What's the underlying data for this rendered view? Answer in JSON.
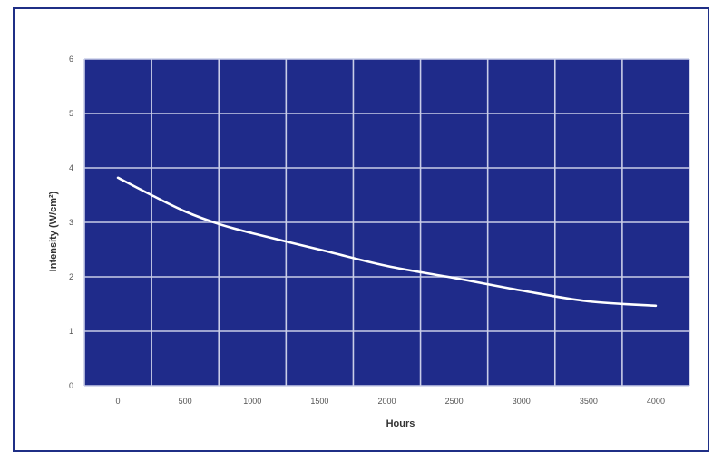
{
  "chart_data": {
    "type": "line",
    "title": "",
    "xlabel": "Hours",
    "ylabel": "Intensity (W/cm²)",
    "xlim": [
      -250,
      4250
    ],
    "ylim": [
      0,
      6
    ],
    "xticks": [
      0,
      500,
      1000,
      1500,
      2000,
      2500,
      3000,
      3500,
      4000
    ],
    "xtick_labels": [
      "0",
      "500",
      "1000",
      "1500",
      "2000",
      "2500",
      "3000",
      "3500",
      "4000"
    ],
    "yticks": [
      0,
      1,
      2,
      3,
      4,
      5,
      6
    ],
    "ytick_labels": [
      "0",
      "1",
      "2",
      "3",
      "4",
      "5",
      "6"
    ],
    "grid": true,
    "colors": {
      "plot_bg": "#1f2b8a",
      "grid": "#c9cde8",
      "line": "#ffffff",
      "frame": "#1f2f86"
    },
    "series": [
      {
        "x": [
          0,
          250,
          500,
          750,
          1000,
          1500,
          2000,
          2500,
          3000,
          3500,
          4000
        ],
        "y": [
          3.82,
          3.5,
          3.2,
          2.97,
          2.8,
          2.5,
          2.2,
          1.98,
          1.75,
          1.55,
          1.47
        ]
      }
    ]
  }
}
